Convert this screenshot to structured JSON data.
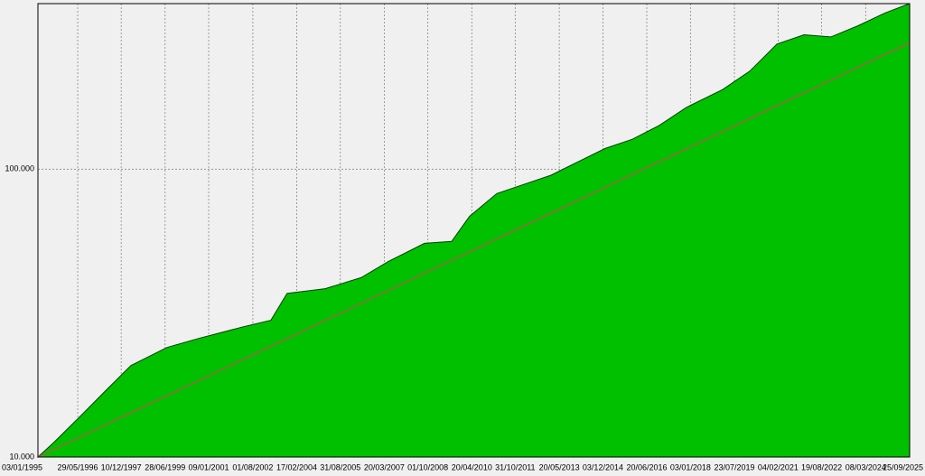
{
  "chart_data": {
    "type": "area",
    "x_format": "dd/mm/yyyy",
    "xlim": [
      "03/01/1995",
      "25/09/2025"
    ],
    "xticks": [
      "03/01/1995",
      "29/05/1996",
      "10/12/1997",
      "28/06/1999",
      "09/01/2001",
      "01/08/2002",
      "17/02/2004",
      "31/08/2005",
      "20/03/2007",
      "01/10/2008",
      "20/04/2010",
      "31/10/2011",
      "20/05/2013",
      "03/12/2014",
      "20/06/2016",
      "03/01/2018",
      "23/07/2019",
      "04/02/2021",
      "19/08/2022",
      "08/03/2024",
      "25/09/2025"
    ],
    "ylim": [
      10000,
      376000
    ],
    "yticks": [
      {
        "value": 10000,
        "label": "10.000"
      },
      {
        "value": 100000,
        "label": "100.000"
      }
    ],
    "log_scale": true,
    "grid": true,
    "series": [
      {
        "color": "#00c000",
        "x": [
          "03/01/1995",
          "27/07/1995",
          "13/07/1996",
          "24/06/1997",
          "12/04/1998",
          "19/07/1999",
          "02/09/2000",
          "05/04/2002",
          "20/03/2003",
          "16/10/2003",
          "17/02/2005",
          "26/05/2006",
          "10/05/2007",
          "18/08/2008",
          "04/08/2009",
          "22/03/2010",
          "08/03/2011",
          "18/02/2012",
          "03/02/2013",
          "15/01/2014",
          "01/01/2015",
          "16/12/2015",
          "28/11/2016",
          "14/11/2017",
          "20/02/2019",
          "06/02/2020",
          "20/01/2021",
          "04/01/2022",
          "16/12/2022",
          "01/12/2023",
          "14/11/2024",
          "25/09/2025"
        ],
        "values": [
          10000,
          11230,
          13950,
          17330,
          20770,
          24000,
          25820,
          28370,
          29860,
          37000,
          38450,
          41990,
          47770,
          55260,
          56100,
          68600,
          82300,
          88500,
          95300,
          106000,
          118000,
          127000,
          142000,
          164000,
          189000,
          219000,
          272000,
          293000,
          288000,
          315000,
          349000,
          376000
        ]
      },
      {
        "color": "#c05050",
        "x": [
          "03/01/1995",
          "25/09/2025"
        ],
        "values": [
          10000,
          275000
        ]
      }
    ]
  }
}
